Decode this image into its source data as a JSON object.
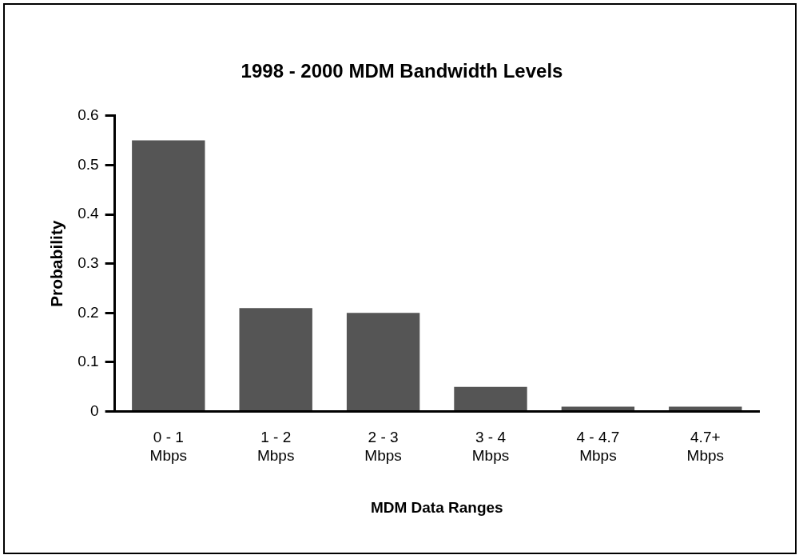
{
  "chart_data": {
    "type": "bar",
    "title": "1998 - 2000 MDM Bandwidth Levels",
    "xlabel": "MDM Data Ranges",
    "ylabel": "Probability",
    "categories": [
      "0 - 1\nMbps",
      "1 - 2\nMbps",
      "2 - 3\nMbps",
      "3 - 4\nMbps",
      "4 - 4.7\nMbps",
      "4.7+\nMbps"
    ],
    "values": [
      0.55,
      0.21,
      0.2,
      0.05,
      0.01,
      0.01
    ],
    "color": "#555555",
    "ylim": [
      0,
      0.6
    ],
    "yticks": [
      0,
      0.1,
      0.2,
      0.3,
      0.4,
      0.5,
      0.6
    ],
    "grid": false,
    "legend": false
  }
}
